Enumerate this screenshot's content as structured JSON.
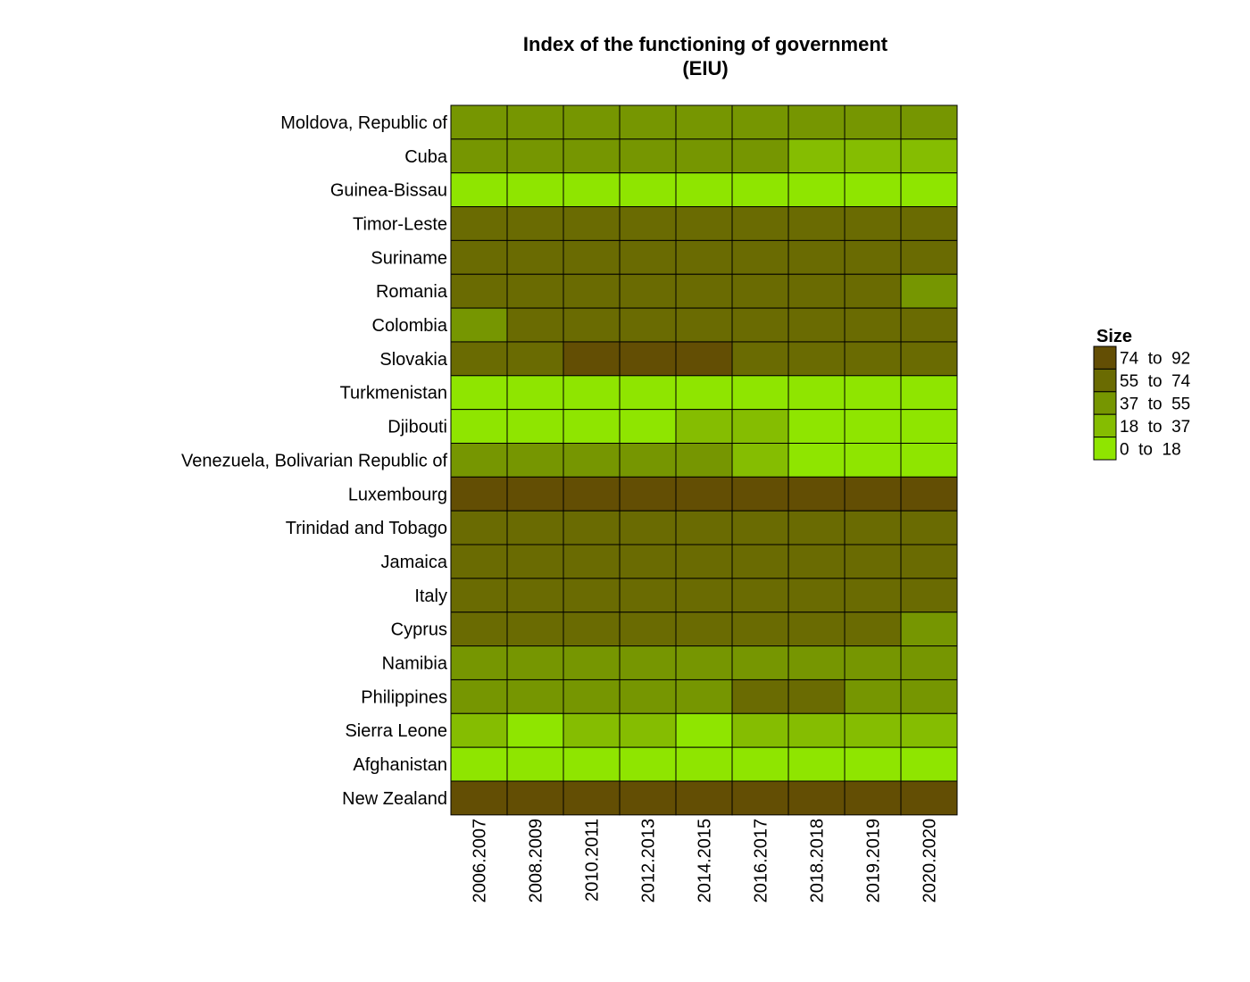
{
  "chart_data": {
    "type": "heatmap",
    "title": "Index of the functioning of government",
    "subtitle": "(EIU)",
    "xlabel": "",
    "ylabel": "",
    "categories": [
      "2006.2007",
      "2008.2009",
      "2010.2011",
      "2012.2013",
      "2014.2015",
      "2016.2017",
      "2018.2018",
      "2019.2019",
      "2020.2020"
    ],
    "rows": [
      "Moldova, Republic of",
      "Cuba",
      "Guinea-Bissau",
      "Timor-Leste",
      "Suriname",
      "Romania",
      "Colombia",
      "Slovakia",
      "Turkmenistan",
      "Djibouti",
      "Venezuela, Bolivarian Republic of",
      "Luxembourg",
      "Trinidad and Tobago",
      "Jamaica",
      "Italy",
      "Cyprus",
      "Namibia",
      "Philippines",
      "Sierra Leone",
      "Afghanistan",
      "New Zealand"
    ],
    "bin_matrix": [
      [
        2,
        2,
        2,
        2,
        2,
        2,
        2,
        2,
        2
      ],
      [
        2,
        2,
        2,
        2,
        2,
        2,
        1,
        1,
        1
      ],
      [
        0,
        0,
        0,
        0,
        0,
        0,
        0,
        0,
        0
      ],
      [
        3,
        3,
        3,
        3,
        3,
        3,
        3,
        3,
        3
      ],
      [
        3,
        3,
        3,
        3,
        3,
        3,
        3,
        3,
        3
      ],
      [
        3,
        3,
        3,
        3,
        3,
        3,
        3,
        3,
        2
      ],
      [
        2,
        3,
        3,
        3,
        3,
        3,
        3,
        3,
        3
      ],
      [
        3,
        3,
        4,
        4,
        4,
        3,
        3,
        3,
        3
      ],
      [
        0,
        0,
        0,
        0,
        0,
        0,
        0,
        0,
        0
      ],
      [
        0,
        0,
        0,
        0,
        1,
        1,
        0,
        0,
        0
      ],
      [
        2,
        2,
        2,
        2,
        2,
        1,
        0,
        0,
        0
      ],
      [
        4,
        4,
        4,
        4,
        4,
        4,
        4,
        4,
        4
      ],
      [
        3,
        3,
        3,
        3,
        3,
        3,
        3,
        3,
        3
      ],
      [
        3,
        3,
        3,
        3,
        3,
        3,
        3,
        3,
        3
      ],
      [
        3,
        3,
        3,
        3,
        3,
        3,
        3,
        3,
        3
      ],
      [
        3,
        3,
        3,
        3,
        3,
        3,
        3,
        3,
        2
      ],
      [
        2,
        2,
        2,
        2,
        2,
        2,
        2,
        2,
        2
      ],
      [
        2,
        2,
        2,
        2,
        2,
        3,
        3,
        2,
        2
      ],
      [
        1,
        0,
        1,
        1,
        0,
        1,
        1,
        1,
        1
      ],
      [
        0,
        0,
        0,
        0,
        0,
        0,
        0,
        0,
        0
      ],
      [
        4,
        4,
        4,
        4,
        4,
        4,
        4,
        4,
        4
      ]
    ],
    "legend": {
      "title": "Size",
      "placement": "right",
      "bins": [
        {
          "label": "74  to  92",
          "color": "#634e04"
        },
        {
          "label": "55  to  74",
          "color": "#6a6b02"
        },
        {
          "label": "37  to  55",
          "color": "#769601"
        },
        {
          "label": "18  to  37",
          "color": "#85bd01"
        },
        {
          "label": "0  to  18",
          "color": "#8fe500"
        }
      ]
    },
    "bin_colors": [
      "#8fe500",
      "#85bd01",
      "#769601",
      "#6a6b02",
      "#634e04"
    ],
    "grid": false
  }
}
